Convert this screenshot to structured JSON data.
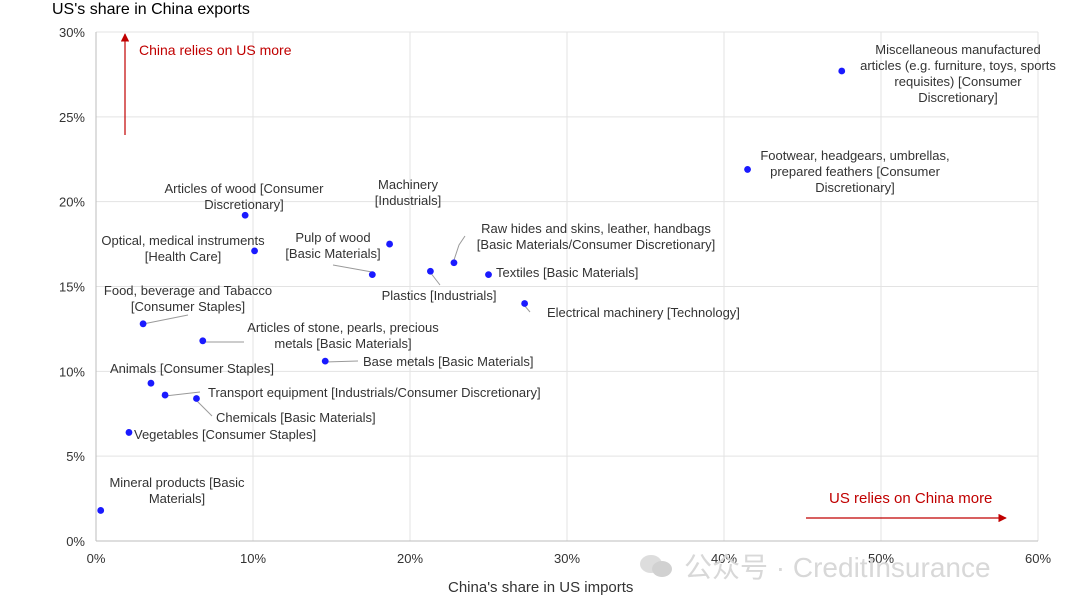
{
  "colors": {
    "point": "#1a1aff",
    "annotation": "#c00000",
    "grid": "#e3e3e3",
    "label": "#333333",
    "leader": "#9a9a9a"
  },
  "watermark": {
    "text": "公众号 · CreditInsurance",
    "icon": "wechat-bubbles-icon"
  },
  "chart_data": {
    "type": "scatter",
    "title": "",
    "ylabel": "US's share in China exports",
    "xlabel": "China's share in US imports",
    "xlim": [
      0,
      60
    ],
    "ylim": [
      0,
      30
    ],
    "x_ticks": [
      "0%",
      "10%",
      "20%",
      "30%",
      "40%",
      "50%",
      "60%"
    ],
    "y_ticks": [
      "0%",
      "5%",
      "10%",
      "15%",
      "20%",
      "25%",
      "30%"
    ],
    "grid": true,
    "legend": "none",
    "annotations": [
      {
        "id": "china-relies",
        "text": "China relies on US more"
      },
      {
        "id": "us-relies",
        "text": "US relies on China more"
      }
    ],
    "points": [
      {
        "x": 47.5,
        "y": 27.7,
        "label": [
          "Miscellaneous manufactured",
          "articles (e.g. furniture, toys, sports",
          "requisites) [Consumer",
          "Discretionary]"
        ]
      },
      {
        "x": 41.5,
        "y": 21.9,
        "label": [
          "Footwear, headgears, umbrellas,",
          "prepared feathers [Consumer",
          "Discretionary]"
        ]
      },
      {
        "x": 9.5,
        "y": 19.2,
        "label": [
          "Articles of wood [Consumer",
          "Discretionary]"
        ]
      },
      {
        "x": 18.7,
        "y": 17.5,
        "label": [
          "Machinery",
          "[Industrials]"
        ]
      },
      {
        "x": 10.1,
        "y": 17.1,
        "label": [
          "Optical, medical instruments",
          "[Health Care]"
        ]
      },
      {
        "x": 17.6,
        "y": 15.7,
        "label": [
          "Pulp of wood",
          "[Basic Materials]"
        ]
      },
      {
        "x": 22.8,
        "y": 16.4,
        "label": [
          "Raw hides and skins, leather, handbags",
          "[Basic Materials/Consumer Discretionary]"
        ]
      },
      {
        "x": 21.3,
        "y": 15.9,
        "label": [
          "Plastics [Industrials]"
        ]
      },
      {
        "x": 25.0,
        "y": 15.7,
        "label": [
          "Textiles [Basic Materials]"
        ]
      },
      {
        "x": 27.3,
        "y": 14.0,
        "label": [
          "Electrical machinery [Technology]"
        ]
      },
      {
        "x": 3.0,
        "y": 12.8,
        "label": [
          "Food, beverage and Tabacco",
          "[Consumer Staples]"
        ]
      },
      {
        "x": 6.8,
        "y": 11.8,
        "label": [
          "Articles of stone, pearls, precious",
          "metals [Basic Materials]"
        ]
      },
      {
        "x": 14.6,
        "y": 10.6,
        "label": [
          "Base metals [Basic Materials]"
        ]
      },
      {
        "x": 3.5,
        "y": 9.3,
        "label": [
          "Animals [Consumer Staples]"
        ]
      },
      {
        "x": 4.4,
        "y": 8.6,
        "label": [
          "Transport equipment [Industrials/Consumer Discretionary]"
        ]
      },
      {
        "x": 6.4,
        "y": 8.4,
        "label": [
          "Chemicals [Basic Materials]"
        ]
      },
      {
        "x": 2.1,
        "y": 6.4,
        "label": [
          "Vegetables [Consumer Staples]"
        ]
      },
      {
        "x": 0.3,
        "y": 1.8,
        "label": [
          "Mineral products [Basic",
          "Materials]"
        ]
      }
    ]
  }
}
